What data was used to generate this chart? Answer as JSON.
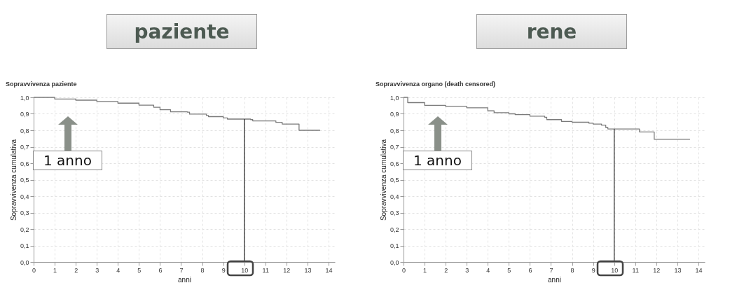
{
  "chart_data": [
    {
      "type": "step",
      "title": "paziente",
      "subtitle": "Sopravvivenza paziente",
      "xlabel": "anni",
      "ylabel": "Sopravvivenza cumulativa",
      "x": [
        0,
        1,
        2,
        3,
        4,
        5,
        5.7,
        6,
        6.5,
        7.3,
        7.4,
        8.2,
        8.3,
        9,
        9.2,
        10.3,
        10.4,
        11.5,
        11.8,
        12.6,
        13.6
      ],
      "series": [
        {
          "color": "#7a7a7a",
          "values": [
            1.0,
            0.99,
            0.983,
            0.975,
            0.965,
            0.953,
            0.94,
            0.925,
            0.912,
            0.91,
            0.898,
            0.89,
            0.883,
            0.875,
            0.868,
            0.865,
            0.857,
            0.848,
            0.838,
            0.8,
            0.8
          ]
        }
      ],
      "xlim": [
        0,
        14.3
      ],
      "xticks": [
        0,
        1,
        2,
        3,
        4,
        5,
        6,
        7,
        8,
        9,
        10,
        11,
        12,
        13,
        14
      ],
      "ylim": [
        0,
        1
      ],
      "yticks": [
        {
          "value": 0,
          "label": "0,0"
        },
        {
          "value": 0.1,
          "label": "0,1"
        },
        {
          "value": 0.2,
          "label": "0,2"
        },
        {
          "value": 0.3,
          "label": "0,3"
        },
        {
          "value": 0.4,
          "label": "0,4"
        },
        {
          "value": 0.5,
          "label": "0,5"
        },
        {
          "value": 0.6,
          "label": "0,6"
        },
        {
          "value": 0.7,
          "label": "0,7"
        },
        {
          "value": 0.8,
          "label": "0,8"
        },
        {
          "value": 0.9,
          "label": "0,9"
        },
        {
          "value": 1,
          "label": "1,0"
        }
      ],
      "grid": true,
      "ref_lines": [
        {
          "axis": "x",
          "value": 10,
          "color": "#333333"
        }
      ],
      "annotations": [
        "1 anno"
      ]
    },
    {
      "type": "step",
      "title": "rene",
      "subtitle": "Sopravvivenza organo (death censored)",
      "xlabel": "anni",
      "ylabel": "Sopravvivenza cumulativa",
      "x": [
        0,
        0.2,
        1,
        2,
        3,
        4,
        4.3,
        5,
        5.3,
        6,
        6.7,
        6.8,
        7.5,
        8,
        8.8,
        9,
        9.4,
        9.6,
        9.7,
        11.2,
        11.9,
        13.6
      ],
      "series": [
        {
          "color": "#7a7a7a",
          "values": [
            1.0,
            0.968,
            0.952,
            0.945,
            0.937,
            0.918,
            0.907,
            0.9,
            0.895,
            0.886,
            0.879,
            0.865,
            0.854,
            0.849,
            0.843,
            0.838,
            0.831,
            0.817,
            0.808,
            0.79,
            0.745,
            0.745
          ]
        }
      ],
      "xlim": [
        0,
        14.3
      ],
      "xticks": [
        0,
        1,
        2,
        3,
        4,
        5,
        6,
        7,
        8,
        9,
        10,
        11,
        12,
        13,
        14
      ],
      "ylim": [
        0,
        1
      ],
      "yticks": [
        {
          "value": 0,
          "label": "0,0"
        },
        {
          "value": 0.1,
          "label": "0,1"
        },
        {
          "value": 0.2,
          "label": "0,2"
        },
        {
          "value": 0.3,
          "label": "0,3"
        },
        {
          "value": 0.4,
          "label": "0,4"
        },
        {
          "value": 0.5,
          "label": "0,5"
        },
        {
          "value": 0.6,
          "label": "0,6"
        },
        {
          "value": 0.7,
          "label": "0,7"
        },
        {
          "value": 0.8,
          "label": "0,8"
        },
        {
          "value": 0.9,
          "label": "0,9"
        },
        {
          "value": 1,
          "label": "1,0"
        }
      ],
      "grid": true,
      "ref_lines": [
        {
          "axis": "x",
          "value": 10,
          "color": "#333333"
        }
      ],
      "annotations": [
        "1 anno"
      ]
    }
  ]
}
